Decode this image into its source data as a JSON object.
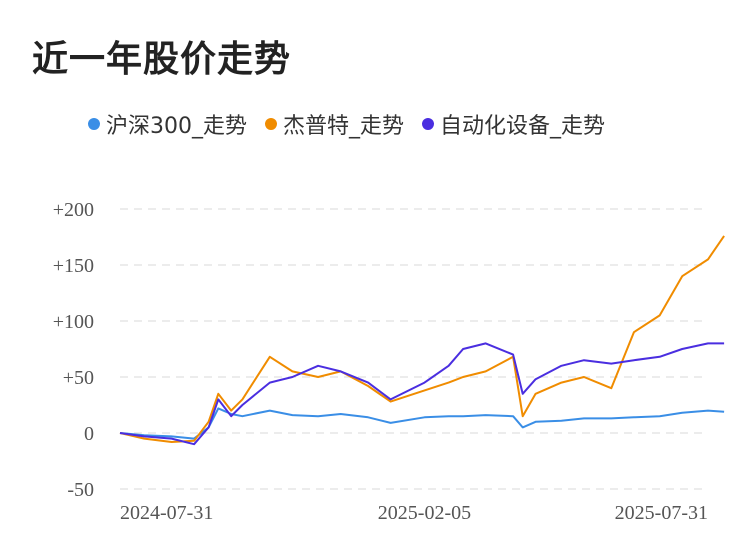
{
  "title": "近一年股价走势",
  "chart_data": {
    "type": "line",
    "title": "近一年股价走势",
    "xlabel": "",
    "ylabel": "",
    "ylim": [
      -50,
      200
    ],
    "yticks": [
      -50,
      0,
      50,
      100,
      150,
      200
    ],
    "ytick_labels": [
      "-50",
      "0",
      "+50",
      "+100",
      "+150",
      "+200"
    ],
    "xticks": [
      "2024-07-31",
      "2025-02-05",
      "2025-07-31"
    ],
    "grid": true,
    "legend_position": "top",
    "x": [
      "2024-07-31",
      "2024-08-15",
      "2024-09-01",
      "2024-09-15",
      "2024-09-24",
      "2024-09-30",
      "2024-10-08",
      "2024-10-15",
      "2024-11-01",
      "2024-11-15",
      "2024-12-01",
      "2024-12-15",
      "2025-01-01",
      "2025-01-15",
      "2025-02-05",
      "2025-02-20",
      "2025-03-01",
      "2025-03-15",
      "2025-04-01",
      "2025-04-07",
      "2025-04-15",
      "2025-05-01",
      "2025-05-15",
      "2025-06-01",
      "2025-06-15",
      "2025-07-01",
      "2025-07-15",
      "2025-07-31",
      "2025-08-10"
    ],
    "series": [
      {
        "name": "沪深300_走势",
        "color": "#3a8ee6",
        "values": [
          0,
          -2,
          -3,
          -5,
          5,
          22,
          17,
          15,
          20,
          16,
          15,
          17,
          14,
          9,
          14,
          15,
          15,
          16,
          15,
          5,
          10,
          11,
          13,
          13,
          14,
          15,
          18,
          20,
          19
        ]
      },
      {
        "name": "杰普特_走势",
        "color": "#f08c00",
        "values": [
          0,
          -5,
          -8,
          -7,
          10,
          35,
          20,
          30,
          68,
          55,
          50,
          55,
          42,
          28,
          38,
          45,
          50,
          55,
          68,
          15,
          35,
          45,
          50,
          40,
          90,
          105,
          140,
          155,
          176
        ]
      },
      {
        "name": "自动化设备_走势",
        "color": "#4a2ee0",
        "values": [
          0,
          -3,
          -5,
          -10,
          5,
          30,
          15,
          25,
          45,
          50,
          60,
          55,
          45,
          30,
          45,
          60,
          75,
          80,
          70,
          35,
          48,
          60,
          65,
          62,
          65,
          68,
          75,
          80,
          80
        ]
      }
    ]
  }
}
